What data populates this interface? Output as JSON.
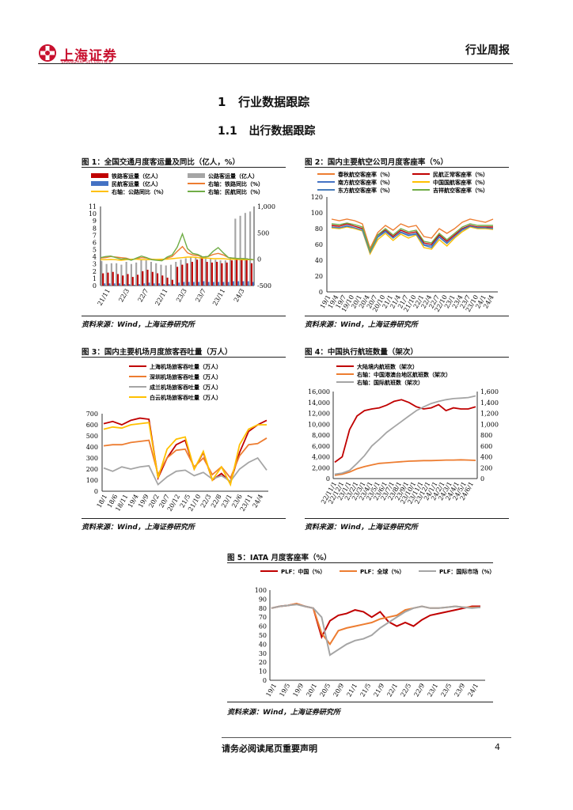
{
  "header": {
    "logo_text": "上海证券",
    "logo_sub": "SHANGHAI SECURITIES",
    "report_type": "行业周报"
  },
  "section": {
    "number": "1",
    "title": "行业数据跟踪",
    "sub_number": "1.1",
    "sub_title": "出行数据跟踪"
  },
  "source_text": "资料来源：Wind，上海证券研究所",
  "footer": {
    "disclaimer": "请务必阅读尾页重要声明",
    "page": "4"
  },
  "colors": {
    "brand": "#c8102e",
    "dark_red": "#c00000",
    "orange": "#ed7d31",
    "gray": "#a5a5a5",
    "blue": "#4472c4",
    "yellow": "#ffc000",
    "green": "#70ad47"
  },
  "charts": [
    {
      "title": "图 1：全国交通月度客运量及同比（亿人，%）",
      "chart_data": {
        "type": "bar",
        "legend": [
          "铁路客运量（亿人）",
          "公路客运量（亿人）",
          "民航客运量（亿人）",
          "右轴：铁路同比（%）",
          "右轴：公路同比（%）",
          "右轴：民航同比（%）"
        ],
        "x_ticks": [
          "21/11",
          "22/3",
          "22/7",
          "22/11",
          "23/3",
          "23/7",
          "23/11",
          "24/3"
        ],
        "ylim_left": [
          0,
          11
        ],
        "y_ticks_left": [
          "0",
          "1",
          "2",
          "3",
          "4",
          "5",
          "6",
          "7",
          "8",
          "9",
          "10",
          "11"
        ],
        "ylim_right": [
          -500,
          1000
        ],
        "y_ticks_right": [
          "-500",
          "0",
          "500",
          "1,000"
        ],
        "series": [
          {
            "name": "铁路客运量（亿人）",
            "values": [
              1.7,
              1.8,
              1.9,
              1.6,
              1.4,
              1.6,
              1.2,
              1.5,
              2.0,
              2.2,
              1.9,
              1.7,
              1.4,
              1.1,
              0.8,
              2.6,
              2.9,
              3.1,
              3.3,
              3.6,
              4.0,
              3.3,
              3.2,
              3.3,
              3.1,
              3.2,
              3.5,
              3.6,
              3.7,
              3.8,
              3.1
            ]
          },
          {
            "name": "公路客运量（亿人）",
            "values": [
              3.4,
              3.0,
              3.1,
              3.1,
              2.9,
              3.3,
              3.0,
              3.2,
              3.6,
              3.5,
              3.3,
              3.1,
              2.9,
              2.8,
              2.9,
              3.3,
              3.6,
              3.8,
              3.9,
              4.0,
              4.2,
              4.1,
              3.7,
              3.6,
              3.5,
              3.5,
              3.8,
              9.3,
              9.7,
              10.1,
              10.3
            ]
          },
          {
            "name": "民航客运量（亿人）",
            "values": [
              0.3,
              0.3,
              0.3,
              0.3,
              0.2,
              0.2,
              0.1,
              0.2,
              0.3,
              0.4,
              0.3,
              0.3,
              0.2,
              0.2,
              0.2,
              0.4,
              0.5,
              0.5,
              0.5,
              0.5,
              0.6,
              0.5,
              0.5,
              0.5,
              0.5,
              0.5,
              0.6,
              0.6,
              0.6,
              0.6,
              0.5
            ]
          },
          {
            "name": "右轴：铁路同比（%）",
            "values": [
              20,
              30,
              50,
              40,
              30,
              20,
              -10,
              10,
              30,
              20,
              0,
              -10,
              -20,
              20,
              50,
              150,
              240,
              120,
              80,
              70,
              40,
              50,
              90,
              110,
              80,
              30,
              20,
              10,
              10,
              0,
              -10
            ]
          },
          {
            "name": "右轴：公路同比（%）",
            "values": [
              -10,
              -10,
              -5,
              -10,
              -20,
              -10,
              0,
              0,
              -10,
              -10,
              -5,
              -5,
              0,
              0,
              10,
              20,
              30,
              40,
              40,
              30,
              20,
              20,
              10,
              10,
              10,
              0,
              0,
              -5,
              -10,
              -10,
              -10
            ]
          },
          {
            "name": "右轴：民航同比（%）",
            "values": [
              30,
              50,
              60,
              30,
              0,
              10,
              -20,
              20,
              60,
              30,
              -10,
              -20,
              -30,
              40,
              80,
              230,
              480,
              200,
              110,
              90,
              40,
              50,
              150,
              220,
              120,
              30,
              20,
              10,
              10,
              0,
              -10
            ]
          }
        ]
      }
    },
    {
      "title": "图 2：国内主要航空公司月度客座率（%）",
      "chart_data": {
        "type": "line",
        "legend": [
          "春秋航空客座率（%）",
          "民航正常客座率（%）",
          "南方航空客座率（%）",
          "中国国航客座率（%）",
          "东方航空客座率（%）",
          "吉祥航空客座率（%）"
        ],
        "x_ticks": [
          "19/1",
          "19/4",
          "19/7",
          "19/10",
          "20/1",
          "20/4",
          "20/7",
          "20/10",
          "21/1",
          "21/4",
          "21/7",
          "21/10",
          "22/1",
          "22/4",
          "22/7",
          "22/10",
          "23/1",
          "23/4",
          "23/7",
          "23/10",
          "24/1",
          "24/4"
        ],
        "ylim": [
          0,
          120
        ],
        "y_ticks": [
          "0",
          "20",
          "40",
          "60",
          "80",
          "100",
          "120"
        ],
        "series": [
          {
            "name": "春秋航空客座率（%）",
            "values": [
              92,
              90,
              92,
              90,
              86,
              55,
              75,
              84,
              78,
              86,
              82,
              84,
              70,
              68,
              80,
              74,
              80,
              88,
              92,
              90,
              88,
              92
            ]
          },
          {
            "name": "民航正常客座率（%）",
            "values": [
              84,
              83,
              86,
              83,
              80,
              52,
              72,
              78,
              70,
              78,
              74,
              76,
              62,
              60,
              72,
              64,
              72,
              80,
              84,
              82,
              82,
              82
            ]
          },
          {
            "name": "南方航空客座率（%）",
            "values": [
              82,
              81,
              84,
              81,
              78,
              50,
              70,
              77,
              68,
              76,
              72,
              74,
              60,
              58,
              70,
              62,
              70,
              79,
              83,
              81,
              81,
              80
            ]
          },
          {
            "name": "中国国航客座率（%）",
            "values": [
              81,
              80,
              82,
              80,
              77,
              48,
              66,
              74,
              65,
              73,
              68,
              72,
              56,
              54,
              66,
              58,
              68,
              76,
              82,
              80,
              80,
              79
            ]
          },
          {
            "name": "东方航空客座率（%）",
            "values": [
              82,
              81,
              83,
              81,
              78,
              50,
              69,
              76,
              68,
              75,
              71,
              73,
              59,
              56,
              69,
              61,
              70,
              78,
              83,
              81,
              81,
              80
            ]
          },
          {
            "name": "吉祥航空客座率（%）",
            "values": [
              86,
              85,
              87,
              85,
              82,
              52,
              72,
              80,
              72,
              80,
              76,
              78,
              64,
              62,
              74,
              66,
              74,
              82,
              86,
              84,
              84,
              84
            ]
          }
        ]
      }
    },
    {
      "title": "图 3：国内主要机场月度旅客吞吐量（万人）",
      "chart_data": {
        "type": "line",
        "legend": [
          "上海机场旅客吞吐量（万人）",
          "深圳机场旅客吞吐量（万人）",
          "成兰机场旅客吞吐量（万人）",
          "白云机场旅客吞吐量（万人）"
        ],
        "x_ticks": [
          "18/1",
          "18/6",
          "18/11",
          "19/4",
          "19/9",
          "20/2",
          "20/7",
          "20/12",
          "21/5",
          "21/10",
          "22/3",
          "22/8",
          "23/1",
          "23/6",
          "23/11",
          "24/4"
        ],
        "ylim": [
          0,
          700
        ],
        "y_ticks": [
          "0",
          "100",
          "200",
          "300",
          "400",
          "500",
          "600",
          "700"
        ],
        "series": [
          {
            "name": "上海机场旅客吞吐量（万人）",
            "values": [
              610,
              630,
              600,
              640,
              660,
              650,
              120,
              300,
              420,
              460,
              200,
              350,
              100,
              160,
              80,
              350,
              540,
              600,
              640
            ]
          },
          {
            "name": "深圳机场旅客吞吐量（万人）",
            "values": [
              410,
              420,
              420,
              440,
              450,
              460,
              150,
              300,
              370,
              380,
              220,
              300,
              150,
              220,
              120,
              320,
              420,
              430,
              480
            ]
          },
          {
            "name": "成兰机场旅客吞吐量（万人）",
            "values": [
              210,
              180,
              220,
              200,
              220,
              230,
              60,
              130,
              180,
              190,
              140,
              170,
              110,
              140,
              90,
              200,
              260,
              300,
              190
            ]
          },
          {
            "name": "白云机场旅客吞吐量（万人）",
            "values": [
              560,
              580,
              570,
              600,
              610,
              620,
              120,
              380,
              470,
              490,
              200,
              360,
              100,
              220,
              60,
              420,
              560,
              600,
              600
            ]
          }
        ]
      }
    },
    {
      "title": "图 4：中国执行航班数量（架次）",
      "chart_data": {
        "type": "line",
        "legend": [
          "大陆境内航班数（架次）",
          "右轴：中国港澳台地区航班数（架次）",
          "右轴：国际航班数（架次）"
        ],
        "x_ticks": [
          "22/11/1",
          "22/12/1",
          "23/1/1",
          "23/2/1",
          "23/3/1",
          "23/4/1",
          "23/5/1",
          "23/6/1",
          "23/7/1",
          "23/8/1",
          "23/9/1",
          "23/10/1",
          "23/11/1",
          "23/12/1",
          "24/1/1",
          "24/2/1",
          "24/3/1",
          "24/4/1",
          "24/5/1",
          "24/6/1"
        ],
        "ylim_left": [
          0,
          16000
        ],
        "y_ticks_left": [
          "0",
          "2,000",
          "4,000",
          "6,000",
          "8,000",
          "10,000",
          "12,000",
          "14,000",
          "16,000"
        ],
        "ylim_right": [
          0,
          1600
        ],
        "y_ticks_right": [
          "0",
          "200",
          "400",
          "600",
          "800",
          "1,000",
          "1,200",
          "1,400",
          "1,600"
        ],
        "series": [
          {
            "name": "大陆境内航班数（架次）",
            "values": [
              3000,
              4000,
              9000,
              11500,
              12500,
              12800,
              13000,
              13500,
              14200,
              14500,
              14000,
              13200,
              12800,
              13000,
              13600,
              12500,
              13000,
              12800,
              12800,
              13200
            ]
          },
          {
            "name": "右轴：中国港澳台地区航班数（架次）",
            "values": [
              60,
              80,
              120,
              180,
              220,
              250,
              280,
              290,
              300,
              310,
              320,
              325,
              330,
              330,
              335,
              340,
              340,
              345,
              340,
              335
            ]
          },
          {
            "name": "右轴：国际航班数（架次）",
            "values": [
              80,
              100,
              150,
              280,
              420,
              600,
              720,
              850,
              950,
              1050,
              1150,
              1250,
              1320,
              1380,
              1420,
              1450,
              1470,
              1480,
              1490,
              1520
            ]
          }
        ]
      }
    },
    {
      "title": "图 5：IATA 月度客座率（%）",
      "chart_data": {
        "type": "line",
        "legend": [
          "PLF：中国（%）",
          "PLF：全球（%）",
          "PLF：国际市场（%）"
        ],
        "x_ticks": [
          "19/1",
          "19/5",
          "19/9",
          "20/1",
          "20/5",
          "20/9",
          "21/1",
          "21/5",
          "21/9",
          "22/1",
          "22/5",
          "22/9",
          "23/1",
          "23/5",
          "23/9",
          "24/1"
        ],
        "ylim": [
          0,
          100
        ],
        "y_ticks": [
          "0",
          "10",
          "20",
          "30",
          "40",
          "50",
          "60",
          "70",
          "80",
          "90",
          "100"
        ],
        "series": [
          {
            "name": "PLF：中国（%）",
            "values": [
              80,
              82,
              83,
              85,
              82,
              80,
              48,
              66,
              72,
              74,
              78,
              76,
              70,
              76,
              65,
              60,
              64,
              60,
              67,
              72,
              74,
              76,
              78,
              80,
              82,
              82
            ]
          },
          {
            "name": "PLF：全球（%）",
            "values": [
              80,
              82,
              83,
              85,
              82,
              80,
              52,
              40,
              55,
              58,
              60,
              62,
              64,
              68,
              70,
              72,
              78,
              80,
              82,
              80,
              80,
              81,
              82,
              81,
              81,
              81
            ]
          },
          {
            "name": "PLF：国际市场（%）",
            "values": [
              80,
              82,
              83,
              84,
              82,
              80,
              70,
              28,
              34,
              40,
              44,
              46,
              50,
              58,
              64,
              70,
              76,
              80,
              82,
              80,
              80,
              81,
              82,
              81,
              80,
              81
            ]
          }
        ]
      }
    }
  ]
}
